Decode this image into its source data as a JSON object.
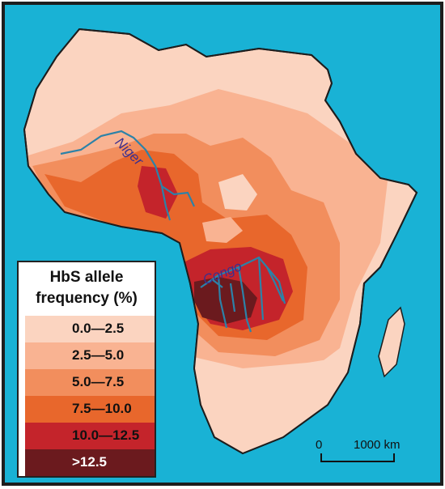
{
  "colors": {
    "ocean": "#19b2d5",
    "frame": "#1d1d1d",
    "river": "#2c82a8",
    "c0": "#fbd4c0",
    "c1": "#f9b392",
    "c2": "#f28e5d",
    "c3": "#e8672c",
    "c4": "#c4242b",
    "c5": "#6b1a1e"
  },
  "legend": {
    "title_line1": "HbS allele",
    "title_line2": "frequency (%)",
    "items": [
      {
        "label": "0.0—2.5",
        "color": "#fbd4c0"
      },
      {
        "label": "2.5—5.0",
        "color": "#f9b392"
      },
      {
        "label": "5.0—7.5",
        "color": "#f28e5d"
      },
      {
        "label": "7.5—10.0",
        "color": "#e8672c"
      },
      {
        "label": "10.0—12.5",
        "color": "#c4242b"
      },
      {
        "label": ">12.5",
        "color": "#6b1a1e"
      }
    ]
  },
  "rivers": {
    "niger": "Niger",
    "congo": "Congo"
  },
  "scale": {
    "zero": "0",
    "distance": "1000 km"
  }
}
